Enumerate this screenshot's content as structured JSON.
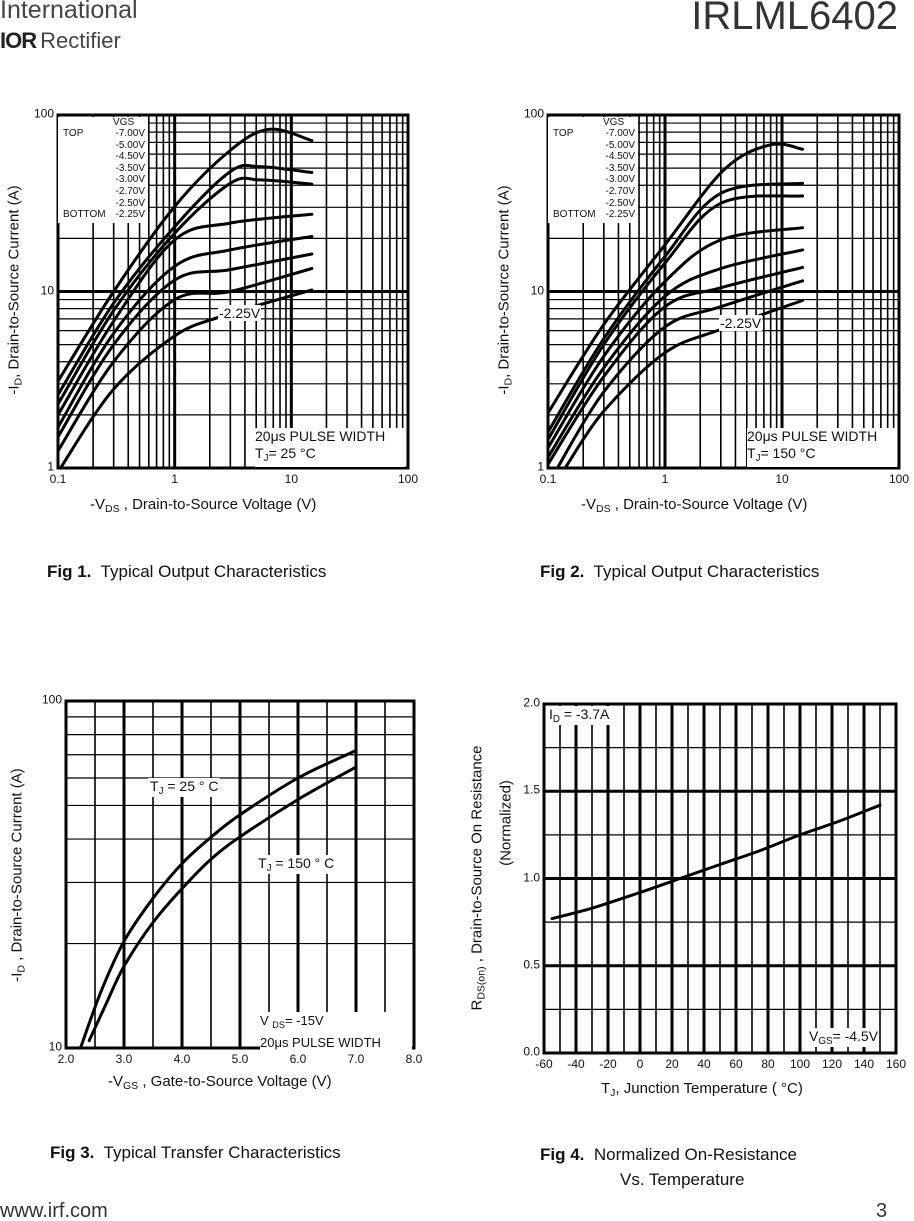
{
  "header": {
    "brand_line1": "International",
    "brand_logo": "IOR",
    "brand_line2": "Rectifier",
    "part_number": "IRLML6402"
  },
  "footer": {
    "url": "www.irf.com",
    "page": "3"
  },
  "chart_data": [
    {
      "type": "line",
      "title": "Typical Output Characteristics",
      "fig_label": "Fig 1.",
      "xscale": "log",
      "yscale": "log",
      "xlim": [
        0.1,
        100
      ],
      "ylim": [
        1,
        100
      ],
      "xticks": [
        "0.1",
        "1",
        "10",
        "100"
      ],
      "yticks": [
        "1",
        "10",
        "100"
      ],
      "xlabel": {
        "pre": "-V",
        "sub": "DS",
        "post": " , Drain-to-Source Voltage (V)"
      },
      "ylabel": {
        "pre": "-I",
        "sub": "D",
        "post": ",   Drain-to-Source Current (A)"
      },
      "grid": true,
      "legend": {
        "title": "VGS",
        "top_label": "TOP",
        "bottom_label": "BOTTOM",
        "placement": "top-left"
      },
      "curve_label": "-2.25V",
      "conditions": {
        "line1": "20μs PULSE WIDTH",
        "tj_pre": "T",
        "tj_sub": "J",
        "tj_post": "= 25 °C"
      },
      "series": [
        {
          "name": "-7.00V",
          "points": [
            [
              0.1,
              3.1
            ],
            [
              0.3,
              10
            ],
            [
              1,
              30.3
            ],
            [
              3,
              63
            ],
            [
              6.5,
              83
            ],
            [
              15,
              71.6
            ]
          ]
        },
        {
          "name": "-5.00V",
          "points": [
            [
              0.1,
              2.6
            ],
            [
              0.3,
              8.6
            ],
            [
              1,
              23.3
            ],
            [
              3,
              47.8
            ],
            [
              5.4,
              51
            ],
            [
              15,
              47.2
            ]
          ]
        },
        {
          "name": "-4.50V",
          "points": [
            [
              0.1,
              2.3
            ],
            [
              0.3,
              7.8
            ],
            [
              1,
              21.4
            ],
            [
              3,
              41
            ],
            [
              5.4,
              42.9
            ],
            [
              15,
              40.6
            ]
          ]
        },
        {
          "name": "-3.50V",
          "points": [
            [
              0.1,
              2.0
            ],
            [
              0.3,
              6.8
            ],
            [
              1,
              19.6
            ],
            [
              3,
              24.4
            ],
            [
              15,
              27.4
            ]
          ]
        },
        {
          "name": "-3.00V",
          "points": [
            [
              0.1,
              1.7
            ],
            [
              0.3,
              5.8
            ],
            [
              1,
              13.9
            ],
            [
              3,
              17.2
            ],
            [
              15,
              20.5
            ]
          ]
        },
        {
          "name": "-2.70V",
          "points": [
            [
              0.1,
              1.5
            ],
            [
              0.3,
              5.0
            ],
            [
              1,
              11.6
            ],
            [
              3,
              13.3
            ],
            [
              15,
              16.3
            ]
          ]
        },
        {
          "name": "-2.50V",
          "points": [
            [
              0.1,
              1.25
            ],
            [
              0.3,
              4.0
            ],
            [
              1,
              9.0
            ],
            [
              3,
              10
            ],
            [
              15,
              13.5
            ]
          ]
        },
        {
          "name": "-2.25V",
          "points": [
            [
              0.105,
              1.0
            ],
            [
              0.3,
              2.8
            ],
            [
              1,
              5.6
            ],
            [
              2.3,
              7.1
            ],
            [
              5,
              8.3
            ],
            [
              15,
              10.2
            ]
          ]
        }
      ]
    },
    {
      "type": "line",
      "title": "Typical Output Characteristics",
      "fig_label": "Fig 2.",
      "xscale": "log",
      "yscale": "log",
      "xlim": [
        0.1,
        100
      ],
      "ylim": [
        1,
        100
      ],
      "xticks": [
        "0.1",
        "1",
        "10",
        "100"
      ],
      "yticks": [
        "1",
        "10",
        "100"
      ],
      "xlabel": {
        "pre": "-V",
        "sub": "DS",
        "post": " , Drain-to-Source Voltage (V)"
      },
      "ylabel": {
        "pre": "-I",
        "sub": "D",
        "post": ",   Drain-to-Source Current (A)"
      },
      "grid": true,
      "legend": {
        "title": "VGS",
        "top_label": "TOP",
        "bottom_label": "BOTTOM",
        "placement": "top-left"
      },
      "curve_label": "-2.25V",
      "conditions": {
        "line1": "20μs PULSE WIDTH",
        "tj_pre": "T",
        "tj_sub": "J",
        "tj_post": "= 150 °C"
      },
      "series": [
        {
          "name": "-7.00V",
          "points": [
            [
              0.1,
              2.05
            ],
            [
              0.3,
              6.5
            ],
            [
              1,
              18.4
            ],
            [
              3.2,
              49
            ],
            [
              7.9,
              67.7
            ],
            [
              15,
              64
            ]
          ]
        },
        {
          "name": "-5.00V",
          "points": [
            [
              0.1,
              1.6
            ],
            [
              0.3,
              5.4
            ],
            [
              1,
              15.8
            ],
            [
              3,
              36
            ],
            [
              15,
              41
            ]
          ]
        },
        {
          "name": "-4.50V",
          "points": [
            [
              0.1,
              1.45
            ],
            [
              0.3,
              5.0
            ],
            [
              1,
              14.5
            ],
            [
              3,
              31.6
            ],
            [
              15,
              34.8
            ]
          ]
        },
        {
          "name": "-3.50V",
          "points": [
            [
              0.1,
              1.3
            ],
            [
              0.3,
              4.3
            ],
            [
              1,
              11.4
            ],
            [
              3,
              19.6
            ],
            [
              15,
              23
            ]
          ]
        },
        {
          "name": "-3.00V",
          "points": [
            [
              0.1,
              1.15
            ],
            [
              0.3,
              3.7
            ],
            [
              1,
              9.4
            ],
            [
              3,
              13.5
            ],
            [
              15,
              17.2
            ]
          ]
        },
        {
          "name": "-2.70V",
          "points": [
            [
              0.1,
              1.05
            ],
            [
              0.3,
              3.3
            ],
            [
              1,
              8.2
            ],
            [
              3,
              10.5
            ],
            [
              15,
              13.7
            ]
          ]
        },
        {
          "name": "-2.50V",
          "points": [
            [
              0.12,
              1.0
            ],
            [
              0.3,
              2.7
            ],
            [
              1,
              6.3
            ],
            [
              3,
              8.2
            ],
            [
              15,
              11.5
            ]
          ]
        },
        {
          "name": "-2.25V",
          "points": [
            [
              0.14,
              1.0
            ],
            [
              0.3,
              2.1
            ],
            [
              1,
              4.5
            ],
            [
              3,
              6.1
            ],
            [
              15,
              8.9
            ]
          ]
        }
      ]
    },
    {
      "type": "line",
      "title": "Typical Transfer Characteristics",
      "fig_label": "Fig 3.",
      "xscale": "linear",
      "yscale": "log",
      "xlim": [
        2.0,
        8.0
      ],
      "ylim": [
        10,
        100
      ],
      "xticks": [
        "2.0",
        "3.0",
        "4.0",
        "5.0",
        "6.0",
        "7.0",
        "8.0"
      ],
      "yticks": [
        "10",
        "100"
      ],
      "xlabel": {
        "pre": "-V",
        "sub": "GS",
        "post": " , Gate-to-Source Voltage (V)"
      },
      "ylabel": {
        "pre": "-I",
        "sub": "D",
        "post": " ,   Drain-to-Source Current (A)"
      },
      "grid": true,
      "labels": {
        "tj25_pre": "T",
        "tj25_sub": "J",
        "tj25_post": " = 25 ° C",
        "tj150_pre": "T",
        "tj150_sub": "J",
        "tj150_post": " = 150 ° C",
        "vds_pre": "V ",
        "vds_sub": "DS",
        "vds_post": "= -15V",
        "pulse": "20μs PULSE WIDTH"
      },
      "series": [
        {
          "name": "TJ = 25°C",
          "points": [
            [
              2.25,
              10
            ],
            [
              2.6,
              14.5
            ],
            [
              3.0,
              20.3
            ],
            [
              3.5,
              27
            ],
            [
              4.0,
              34
            ],
            [
              4.5,
              40.5
            ],
            [
              5.0,
              47
            ],
            [
              6.0,
              60
            ],
            [
              7.0,
              72
            ]
          ]
        },
        {
          "name": "TJ = 150°C",
          "points": [
            [
              2.4,
              10.5
            ],
            [
              2.7,
              13.5
            ],
            [
              3.0,
              17.2
            ],
            [
              3.5,
              23
            ],
            [
              4.0,
              28.8
            ],
            [
              4.5,
              35
            ],
            [
              5.0,
              40.6
            ],
            [
              6.0,
              52
            ],
            [
              7.0,
              64.5
            ]
          ]
        }
      ]
    },
    {
      "type": "line",
      "title": "Normalized On-Resistance",
      "title_line2": "Vs. Temperature",
      "fig_label": "Fig 4.",
      "xscale": "linear",
      "yscale": "linear",
      "xlim": [
        -60,
        160
      ],
      "ylim": [
        0.0,
        2.0
      ],
      "xticks": [
        "-60",
        "-40",
        "-20",
        "0",
        "20",
        "40",
        "60",
        "80",
        "100",
        "120",
        "140",
        "160"
      ],
      "yticks": [
        "0.0",
        "0.5",
        "1.0",
        "1.5",
        "2.0"
      ],
      "xlabel": {
        "pre": "T",
        "sub": "J",
        "post": ", Junction Temperature  ( °C)"
      },
      "ylabel": {
        "pre": "R",
        "sub": "DS(on)",
        "post": " ,  Drain-to-Source On Resistance",
        "line2": "(Normalized)"
      },
      "grid": true,
      "labels": {
        "id_pre": "I",
        "id_sub": "D",
        "id_post": " = -3.7A",
        "vgs_pre": "V",
        "vgs_sub": "GS",
        "vgs_post": "= -4.5V"
      },
      "series": [
        {
          "name": "RDS(on)",
          "points": [
            [
              -55,
              0.77
            ],
            [
              -30,
              0.83
            ],
            [
              0,
              0.92
            ],
            [
              25,
              1.0
            ],
            [
              50,
              1.08
            ],
            [
              75,
              1.16
            ],
            [
              100,
              1.25
            ],
            [
              125,
              1.33
            ],
            [
              150,
              1.42
            ]
          ]
        }
      ]
    }
  ]
}
